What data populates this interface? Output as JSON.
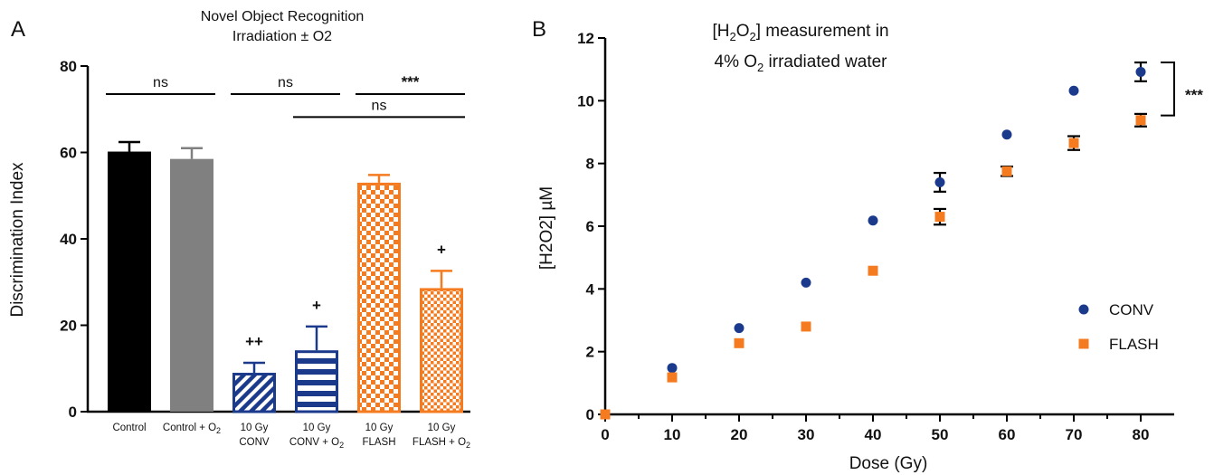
{
  "chart_data": [
    {
      "panel_label": "A",
      "type": "bar",
      "title_line1": "Novel Object Recognition",
      "title_line2": "Irradiation ± O2",
      "xlabel": "",
      "ylabel": "Discrimination Index",
      "ylim": [
        0,
        80
      ],
      "yticks": [
        "0",
        "20",
        "40",
        "60",
        "80"
      ],
      "categories": [
        {
          "line1": "Control",
          "line2": ""
        },
        {
          "line1": "Control + O₂",
          "line2": ""
        },
        {
          "line1": "10 Gy",
          "line2": "CONV"
        },
        {
          "line1": "10 Gy",
          "line2": "CONV + O₂"
        },
        {
          "line1": "10 Gy",
          "line2": "FLASH"
        },
        {
          "line1": "10 Gy",
          "line2": "FLASH + O₂"
        }
      ],
      "values": [
        60.2,
        58.5,
        9.0,
        14.2,
        53.0,
        28.6
      ],
      "errors": [
        2.2,
        2.5,
        2.3,
        5.5,
        1.8,
        4.0
      ],
      "bar_fill": [
        "solid",
        "solid",
        "diagonal",
        "horizontal",
        "checker",
        "checker-fine"
      ],
      "colors": [
        "#000000",
        "#808080",
        "#1b3a8c",
        "#1b3a8c",
        "#f47b20",
        "#f47b20"
      ],
      "annotations": [
        {
          "text": "ns",
          "from": 0,
          "to": 1,
          "y": 73.5
        },
        {
          "text": "ns",
          "from": 2,
          "to": 3,
          "y": 73.5
        },
        {
          "text": "***",
          "from": 4,
          "to": 5,
          "y": 73.5
        },
        {
          "text": "ns",
          "from": 3,
          "to": 5,
          "y": 68.2
        }
      ],
      "bar_marks": [
        {
          "bar": 2,
          "text": "++"
        },
        {
          "bar": 3,
          "text": "+"
        },
        {
          "bar": 5,
          "text": "+"
        }
      ]
    },
    {
      "panel_label": "B",
      "type": "scatter",
      "title_line1": "[H2O2] measurement in",
      "title_line2": "4% O2 irradiated water",
      "xlabel": "Dose (Gy)",
      "ylabel": "[H2O2] µM",
      "xlim": [
        0,
        85
      ],
      "ylim": [
        0,
        12
      ],
      "xticks": [
        "0",
        "10",
        "20",
        "30",
        "40",
        "50",
        "60",
        "70",
        "80"
      ],
      "yticks": [
        "0",
        "2",
        "4",
        "6",
        "8",
        "10",
        "12"
      ],
      "series": [
        {
          "name": "CONV",
          "color": "#1b3a8c",
          "marker": "circle",
          "x": [
            0,
            10,
            20,
            30,
            40,
            50,
            60,
            70,
            80
          ],
          "y": [
            0,
            1.48,
            2.75,
            4.2,
            6.18,
            7.4,
            8.92,
            10.32,
            10.92
          ],
          "err": [
            0,
            0,
            0,
            0,
            0,
            0.3,
            0,
            0,
            0.3
          ]
        },
        {
          "name": "FLASH",
          "color": "#f47b20",
          "marker": "square",
          "x": [
            0,
            10,
            20,
            30,
            40,
            50,
            60,
            70,
            80
          ],
          "y": [
            0,
            1.18,
            2.27,
            2.8,
            4.58,
            6.3,
            7.75,
            8.65,
            9.38
          ],
          "err": [
            0,
            0,
            0,
            0,
            0,
            0.25,
            0.15,
            0.22,
            0.2
          ]
        }
      ],
      "significance": "***"
    }
  ]
}
